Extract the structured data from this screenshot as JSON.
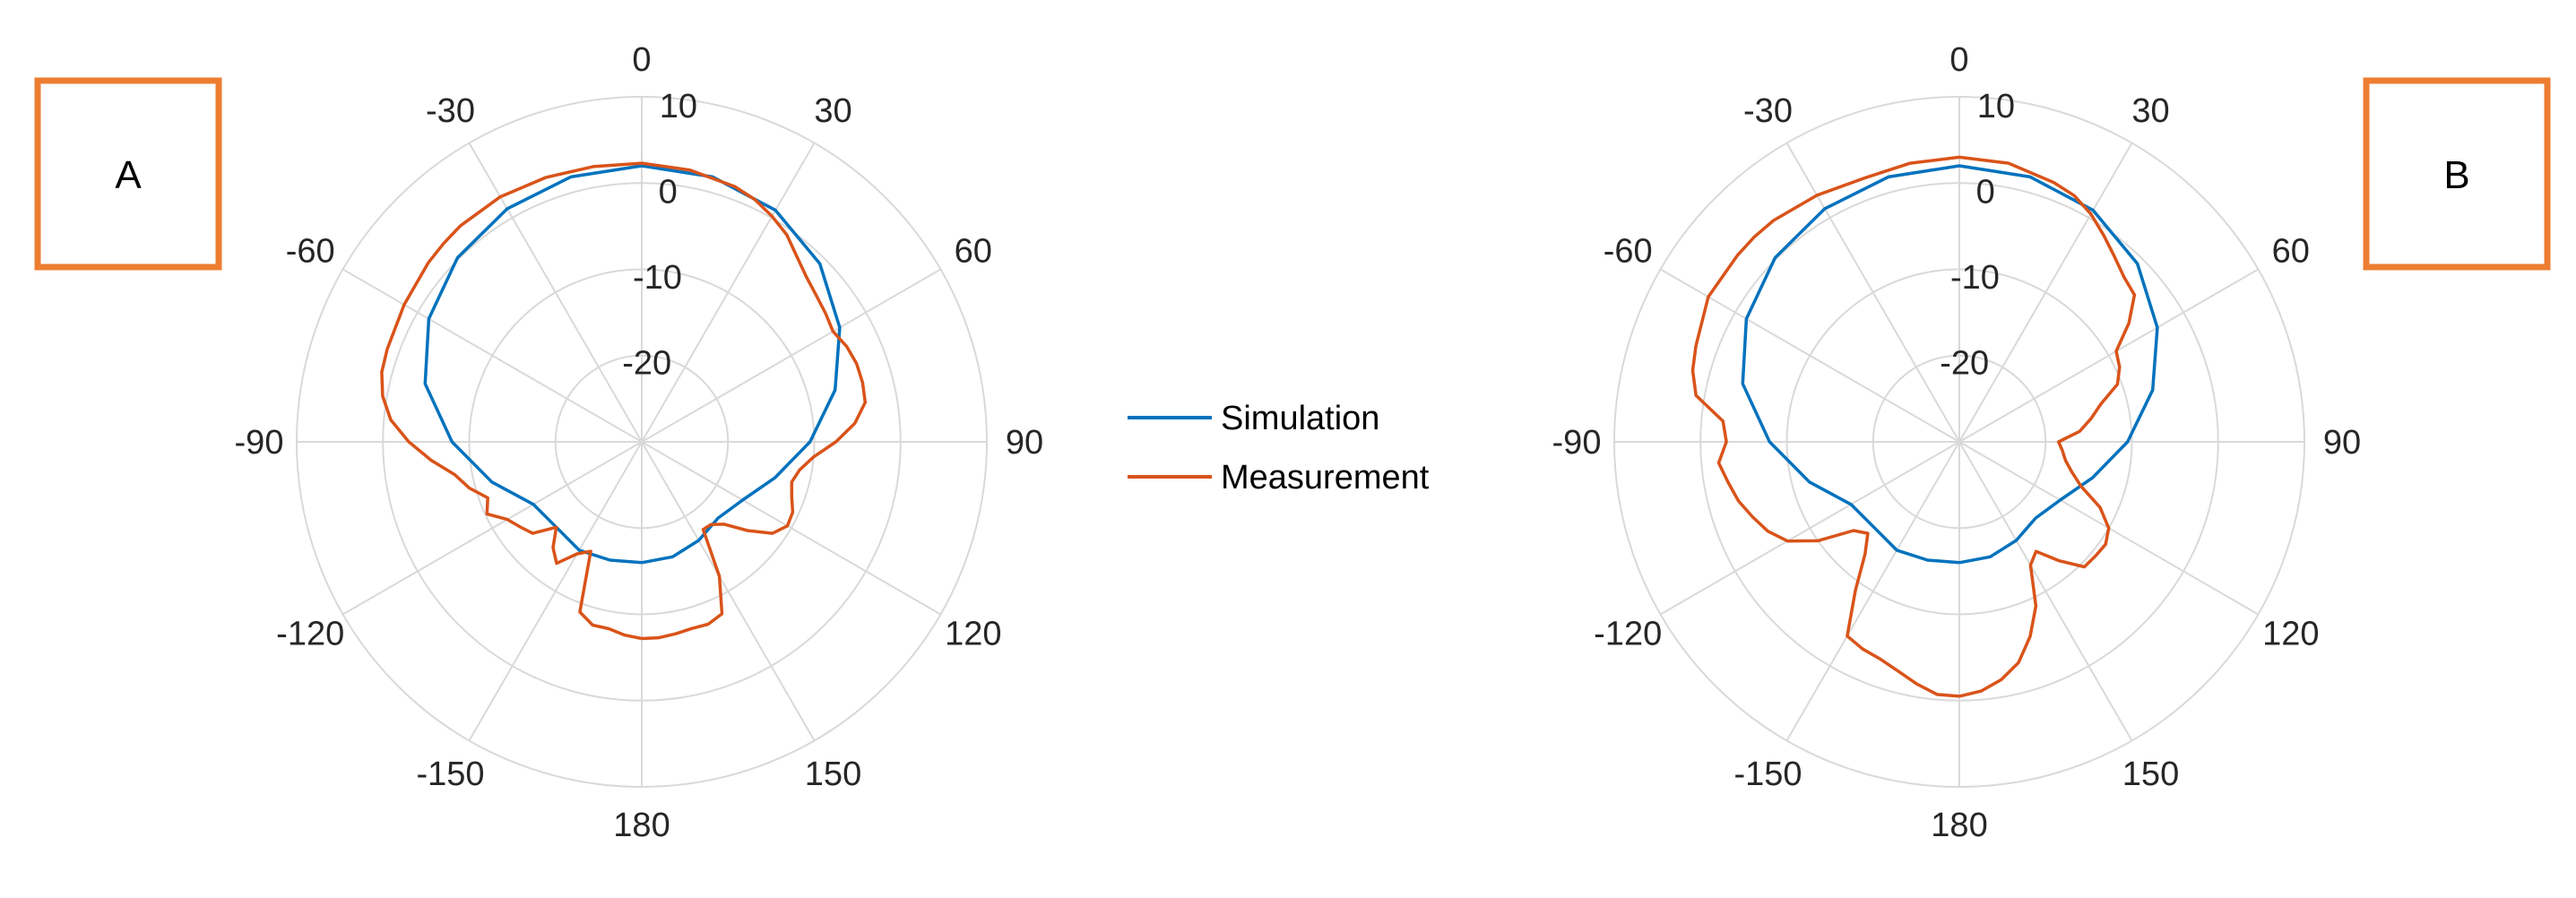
{
  "colors": {
    "simulation": "#0072BD",
    "measurement": "#D95319",
    "panel_box": "#ED7D31",
    "grid": "#d9d9d9",
    "axis_text": "#262626"
  },
  "legend": {
    "placement": "center",
    "entries": [
      "Simulation",
      "Measurement"
    ]
  },
  "panels": [
    {
      "label": "A"
    },
    {
      "label": "B"
    }
  ],
  "chart_data": [
    {
      "type": "polar-line",
      "panel": "A",
      "theta_zero": "top",
      "theta_direction": "clockwise",
      "theta_ticks": [
        "0",
        "30",
        "60",
        "90",
        "120",
        "150",
        "180",
        "-150",
        "-120",
        "-90",
        "-60",
        "-30"
      ],
      "r_ticks": [
        "-20",
        "-10",
        "0",
        "10"
      ],
      "r_lim": [
        -30,
        10
      ],
      "grid": true,
      "series": [
        {
          "name": "Simulation",
          "theta": [
            -180,
            -165,
            -150,
            -135,
            -120,
            -105,
            -90,
            -75,
            -60,
            -45,
            -30,
            -15,
            0,
            15,
            30,
            45,
            60,
            75,
            90,
            105,
            120,
            135,
            150,
            165,
            180
          ],
          "r": [
            -16,
            -15.8,
            -15.5,
            -16,
            -15.5,
            -12,
            -8,
            -4,
            -1.5,
            0.2,
            1.2,
            1.8,
            2,
            1.8,
            1,
            -0.8,
            -3.5,
            -6.8,
            -10.5,
            -14,
            -16.5,
            -17.5,
            -16.8,
            -16.2,
            -16
          ]
        },
        {
          "name": "Measurement",
          "theta": [
            -180,
            -175,
            -170,
            -165,
            -160,
            -155,
            -150,
            -145,
            -140,
            -135,
            -130,
            -125,
            -120,
            -115,
            -110,
            -105,
            -100,
            -95,
            -90,
            -85,
            -80,
            -75,
            -70,
            -60,
            -50,
            -45,
            -40,
            -30,
            -20,
            -10,
            0,
            10,
            20,
            25,
            30,
            35,
            40,
            45,
            50,
            55,
            60,
            65,
            70,
            75,
            80,
            85,
            90,
            95,
            100,
            105,
            110,
            115,
            120,
            125,
            130,
            135,
            140,
            145,
            150,
            155,
            160,
            165,
            170,
            175,
            180
          ],
          "r": [
            -7.2,
            -7.5,
            -8,
            -8,
            -9,
            -16,
            -15,
            -12.8,
            -14,
            -16,
            -13.5,
            -12.8,
            -12,
            -10.2,
            -11,
            -9.3,
            -8,
            -5.5,
            -3,
            -0.8,
            0.5,
            1.2,
            1.4,
            1.8,
            2.3,
            2.5,
            2.7,
            2.8,
            2.6,
            2.4,
            2.3,
            2.0,
            1.5,
            1.0,
            0.2,
            -0.7,
            -2.0,
            -3.0,
            -3.6,
            -4.0,
            -4.4,
            -3.8,
            -3.5,
            -3.5,
            -3.7,
            -5.2,
            -7.5,
            -10,
            -11.4,
            -12,
            -11.5,
            -10.7,
            -10.5,
            -11.5,
            -14,
            -16.5,
            -17.5,
            -17.6,
            -12,
            -8,
            -7.5,
            -7.6,
            -7.4,
            -7.2,
            -7.2
          ]
        }
      ]
    },
    {
      "type": "polar-line",
      "panel": "B",
      "theta_zero": "top",
      "theta_direction": "clockwise",
      "theta_ticks": [
        "0",
        "30",
        "60",
        "90",
        "120",
        "150",
        "180",
        "-150",
        "-120",
        "-90",
        "-60",
        "-30"
      ],
      "r_ticks": [
        "-20",
        "-10",
        "0",
        "10"
      ],
      "r_lim": [
        -30,
        10
      ],
      "grid": true,
      "series": [
        {
          "name": "Simulation",
          "theta": [
            -180,
            -165,
            -150,
            -135,
            -120,
            -105,
            -90,
            -75,
            -60,
            -45,
            -30,
            -15,
            0,
            15,
            30,
            45,
            60,
            75,
            90,
            105,
            120,
            135,
            150,
            165,
            180
          ],
          "r": [
            -16,
            -15.8,
            -15.5,
            -16,
            -15.5,
            -12,
            -8,
            -4,
            -1.5,
            0.2,
            1.2,
            1.8,
            2,
            1.8,
            1,
            -0.8,
            -3.5,
            -6.8,
            -10.5,
            -14,
            -16.5,
            -17.5,
            -16.8,
            -16.2,
            -16
          ]
        },
        {
          "name": "Measurement",
          "theta": [
            -180,
            -175,
            -170,
            -165,
            -160,
            -155,
            -150,
            -145,
            -140,
            -135,
            -130,
            -125,
            -120,
            -115,
            -110,
            -105,
            -100,
            -95,
            -90,
            -85,
            -80,
            -75,
            -70,
            -60,
            -50,
            -45,
            -40,
            -30,
            -20,
            -10,
            0,
            10,
            20,
            25,
            30,
            35,
            40,
            45,
            50,
            55,
            60,
            65,
            70,
            75,
            80,
            85,
            90,
            95,
            100,
            105,
            110,
            115,
            120,
            125,
            130,
            135,
            140,
            145,
            150,
            155,
            160,
            165,
            170,
            175,
            180
          ],
          "r": [
            -0.5,
            -0.6,
            -1.5,
            -2.5,
            -3.2,
            -3.5,
            -4,
            -9,
            -13,
            -15,
            -14,
            -10,
            -7,
            -5.5,
            -4.5,
            -3.5,
            -2.8,
            -2,
            -3,
            -2.5,
            1,
            2,
            2.5,
            3.6,
            3.6,
            3.6,
            3.5,
            3,
            2.5,
            2.8,
            3,
            2.8,
            2,
            1.5,
            0.5,
            -0.8,
            -2,
            -3,
            -3.5,
            -6,
            -9,
            -9.5,
            -10.5,
            -13,
            -14.5,
            -16,
            -18.5,
            -18,
            -17.5,
            -16.5,
            -15,
            -12,
            -10,
            -9.3,
            -9.4,
            -9.5,
            -12,
            -14.5,
            -13.5,
            -9,
            -6,
            -3.5,
            -2,
            -1,
            -0.5
          ]
        }
      ]
    }
  ]
}
